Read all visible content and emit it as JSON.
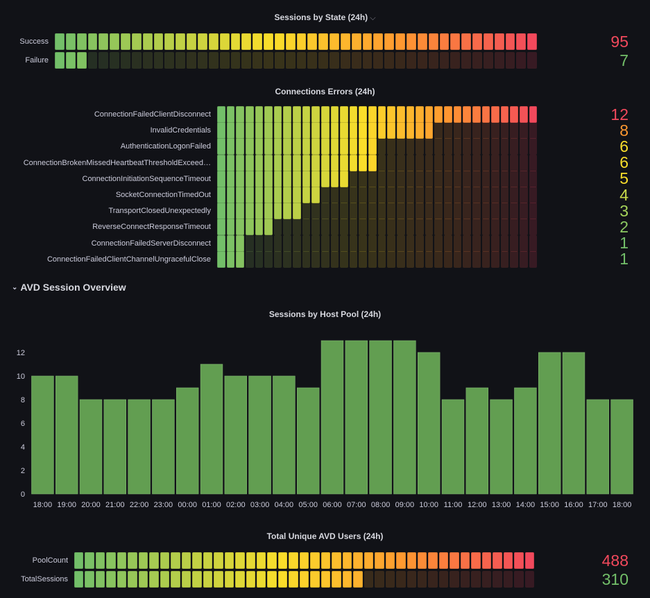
{
  "colors": {
    "green": "#73bf69",
    "yellow": "#fade2a",
    "orange": "#ff9830",
    "red": "#f2495c",
    "bar_fill": "#629e51",
    "background": "#111217"
  },
  "sessions_by_state": {
    "title": "Sessions by State (24h)",
    "title_icon": "chevron-down-icon",
    "max": 95,
    "rows": [
      {
        "label": "Success",
        "value": "95",
        "color": "#f2495c"
      },
      {
        "label": "Failure",
        "value": "7",
        "color": "#73bf69"
      }
    ]
  },
  "connection_errors": {
    "title": "Connections Errors (24h)",
    "max": 12,
    "rows": [
      {
        "label": "ConnectionFailedClientDisconnect",
        "value": "12",
        "color": "#f2495c"
      },
      {
        "label": "InvalidCredentials",
        "value": "8",
        "color": "#ff9830"
      },
      {
        "label": "AuthenticationLogonFailed",
        "value": "6",
        "color": "#fade2a"
      },
      {
        "label": "ConnectionBrokenMissedHeartbeatThresholdExceed…",
        "value": "6",
        "color": "#fade2a"
      },
      {
        "label": "ConnectionInitiationSequenceTimeout",
        "value": "5",
        "color": "#fade2a"
      },
      {
        "label": "SocketConnectionTimedOut",
        "value": "4",
        "color": "#c8d94a"
      },
      {
        "label": "TransportClosedUnexpectedly",
        "value": "3",
        "color": "#a6d45a"
      },
      {
        "label": "ReverseConnectResponseTimeout",
        "value": "2",
        "color": "#8cc963"
      },
      {
        "label": "ConnectionFailedServerDisconnect",
        "value": "1",
        "color": "#73bf69"
      },
      {
        "label": "ConnectionFailedClientChannelUngracefulClose",
        "value": "1",
        "color": "#73bf69"
      }
    ]
  },
  "section": {
    "title": "AVD Session Overview",
    "icon": "chevron-down-icon"
  },
  "host_pool": {
    "title": "Sessions by Host Pool (24h)"
  },
  "chart_data": {
    "type": "bar",
    "title": "Sessions by Host Pool (24h)",
    "categories": [
      "18:00",
      "19:00",
      "20:00",
      "21:00",
      "22:00",
      "23:00",
      "00:00",
      "01:00",
      "02:00",
      "03:00",
      "04:00",
      "05:00",
      "06:00",
      "07:00",
      "08:00",
      "09:00",
      "10:00",
      "11:00",
      "12:00",
      "13:00",
      "14:00",
      "15:00",
      "16:00",
      "17:00",
      "18:00"
    ],
    "values": [
      10,
      10,
      8,
      8,
      8,
      8,
      9,
      11,
      10,
      10,
      10,
      9,
      13,
      13,
      13,
      13,
      12,
      8,
      9,
      8,
      9,
      12,
      12,
      8,
      8
    ],
    "yticks": [
      "0",
      "2",
      "4",
      "6",
      "8",
      "10",
      "12"
    ],
    "ylim": [
      0,
      14
    ],
    "grid": false,
    "color": "#629e51"
  },
  "unique_users": {
    "title": "Total Unique AVD Users (24h)",
    "max": 488,
    "rows": [
      {
        "label": "PoolCount",
        "value": "488",
        "color": "#f2495c"
      },
      {
        "label": "TotalSessions",
        "value": "310",
        "color": "#73bf69"
      }
    ]
  }
}
